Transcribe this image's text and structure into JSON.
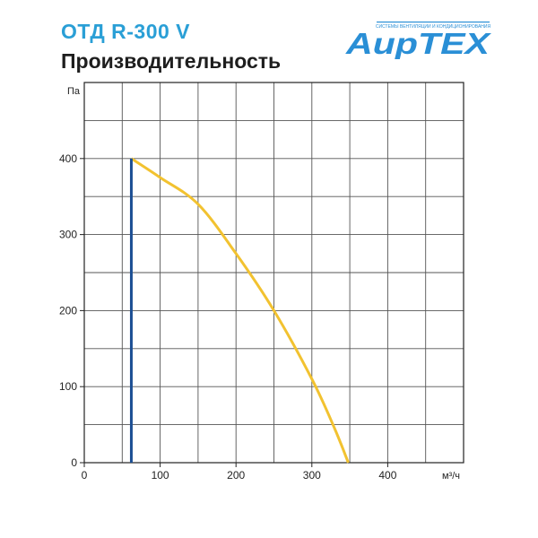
{
  "header": {
    "model": "ОТД R-300 V",
    "subtitle": "Производительность",
    "logo_tagline": "СИСТЕМЫ ВЕНТИЛЯЦИИ И КОНДИЦИОНИРОВАНИЯ",
    "logo_text": "АирТЕХ",
    "logo_color": "#2a8fd6"
  },
  "chart_data": {
    "type": "line",
    "title": "Производительность",
    "xlabel": "м³/ч",
    "ylabel": "Па",
    "xlim": [
      0,
      500
    ],
    "ylim": [
      0,
      500
    ],
    "xticks": [
      0,
      100,
      200,
      300,
      400
    ],
    "yticks": [
      0,
      100,
      200,
      300,
      400
    ],
    "grid": true,
    "x_grid_step": 50,
    "y_grid_step": 50,
    "series": [
      {
        "color": "#f2c230",
        "x": [
          62,
          100,
          150,
          200,
          250,
          300,
          330,
          348
        ],
        "y": [
          400,
          375,
          340,
          275,
          200,
          110,
          45,
          0
        ]
      },
      {
        "color": "#1c4f94",
        "x": [
          62,
          62
        ],
        "y": [
          0,
          400
        ]
      }
    ]
  }
}
